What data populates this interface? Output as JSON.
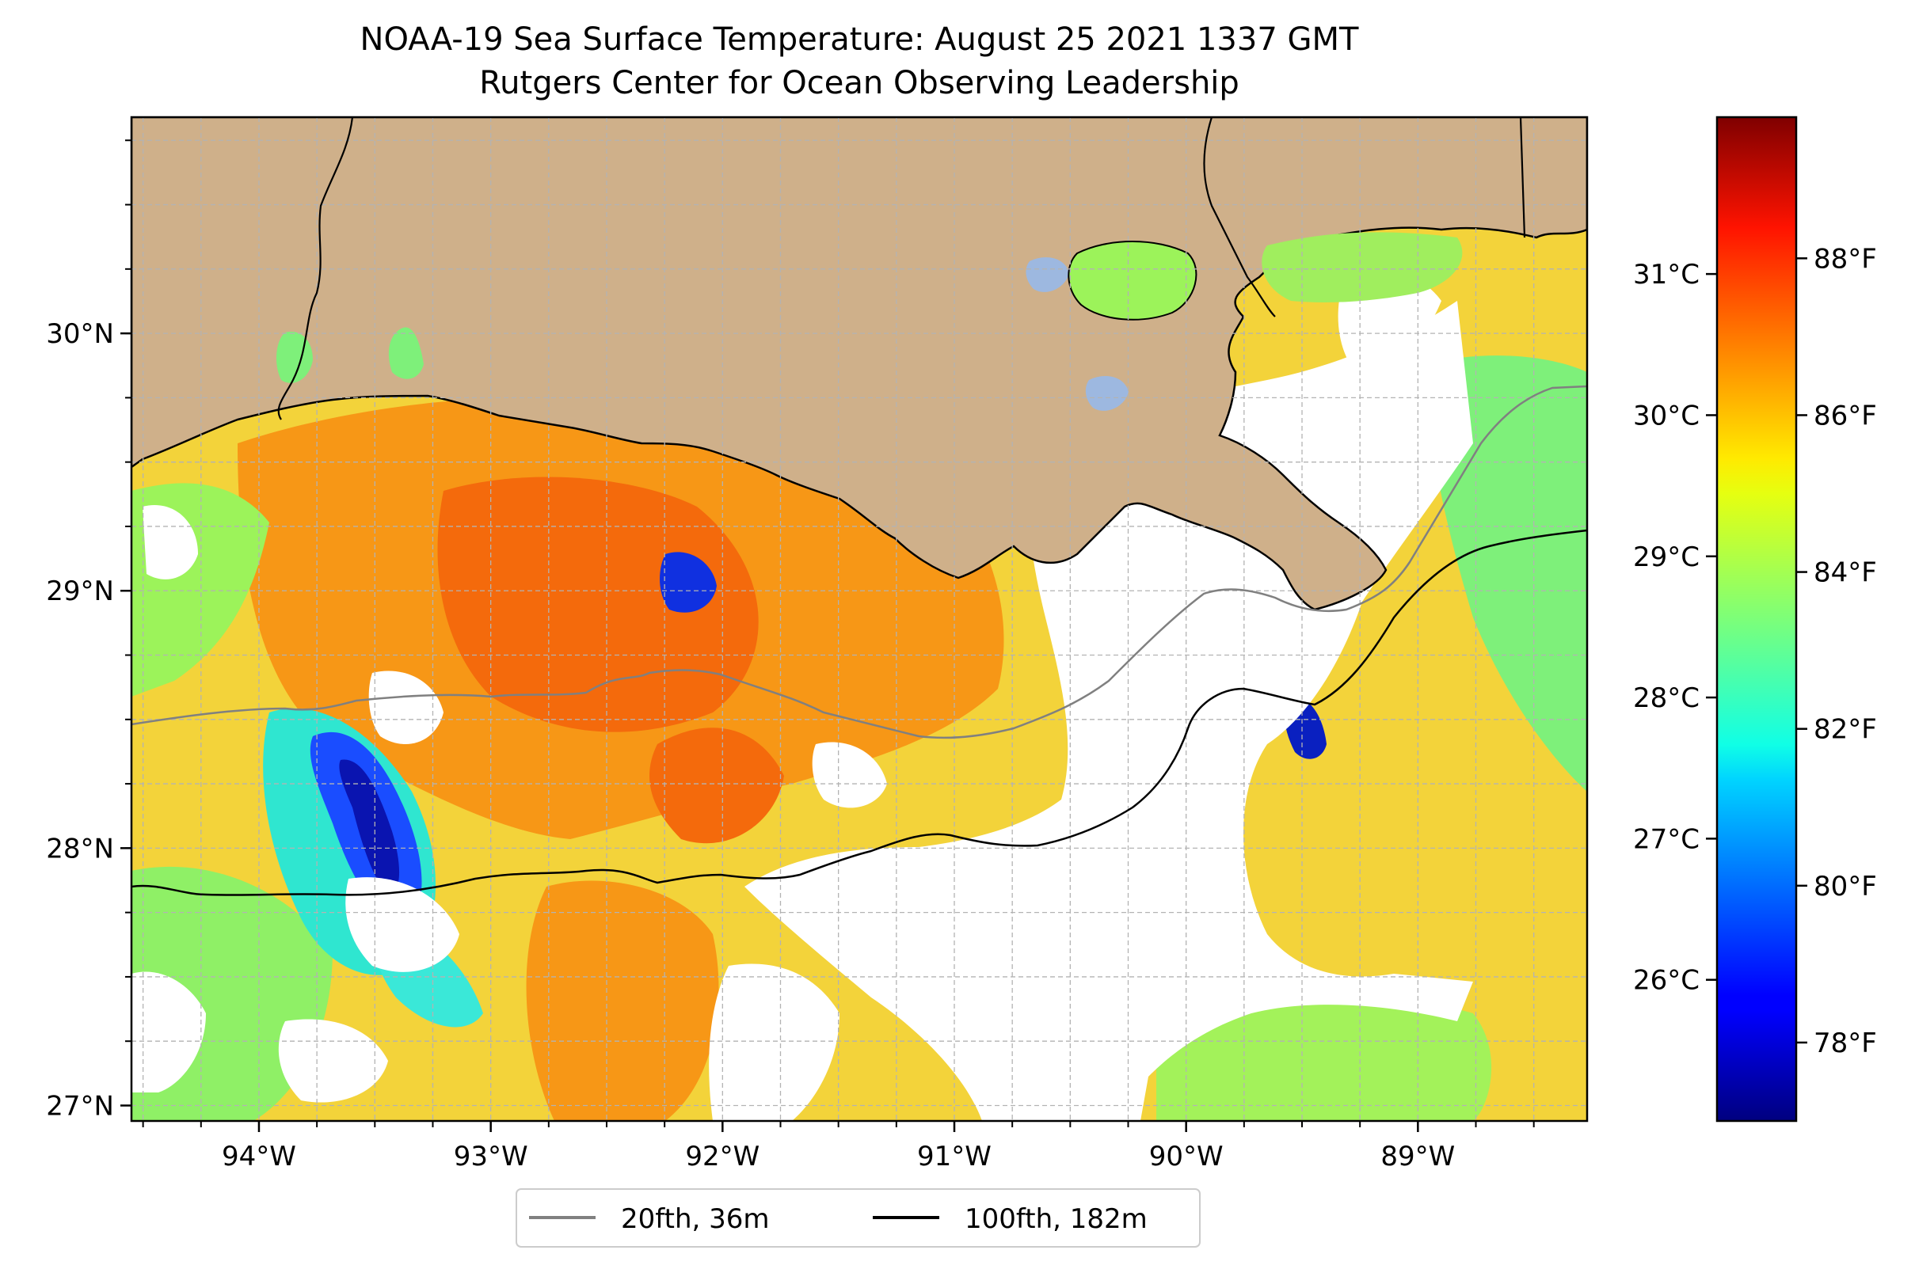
{
  "figure": {
    "title_line1": "NOAA-19 Sea Surface Temperature: August 25 2021 1337 GMT",
    "title_line2": "Rutgers Center for Ocean Observing Leadership"
  },
  "map": {
    "lon_range": [
      -94.55,
      -88.27
    ],
    "lat_range": [
      26.94,
      30.84
    ],
    "lon_ticks": [
      -94,
      -93,
      -92,
      -91,
      -90,
      -89
    ],
    "lon_tick_labels": [
      "94°W",
      "93°W",
      "92°W",
      "91°W",
      "90°W",
      "89°W"
    ],
    "lat_ticks": [
      27,
      28,
      29,
      30
    ],
    "lat_tick_labels": [
      "27°N",
      "28°N",
      "29°N",
      "30°N"
    ],
    "gridlines": true,
    "grid_spacing_deg": 0.25,
    "land_color": "#cfb08a",
    "lake_color": "#9db8e0"
  },
  "legend": {
    "placement": "bottom-center",
    "entries": [
      {
        "label": "20fth, 36m",
        "color": "#808080"
      },
      {
        "label": "100fth, 182m",
        "color": "#000000"
      }
    ]
  },
  "colorbar": {
    "colormap": "jet",
    "range_f": [
      77.0,
      89.8
    ],
    "celsius_ticks": [
      26,
      27,
      28,
      29,
      30,
      31
    ],
    "celsius_labels": [
      "26°C",
      "27°C",
      "28°C",
      "29°C",
      "30°C",
      "31°C"
    ],
    "fahrenheit_ticks": [
      78,
      80,
      82,
      84,
      86,
      88
    ],
    "fahrenheit_labels": [
      "78°F",
      "80°F",
      "82°F",
      "84°F",
      "86°F",
      "88°F"
    ]
  }
}
